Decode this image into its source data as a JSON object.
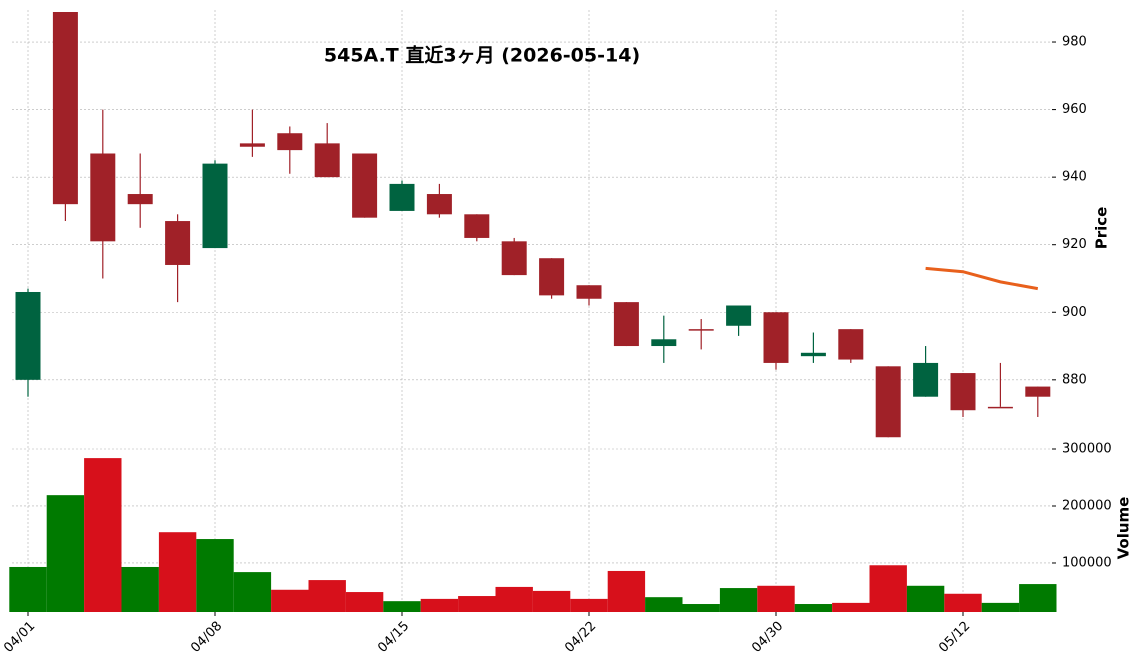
{
  "chart_data": {
    "type": "candlestick",
    "title": "545A.T  直近3ヶ月  (2026-05-14)",
    "categories": [
      "04/01",
      null,
      null,
      null,
      null,
      "04/08",
      null,
      null,
      null,
      null,
      "04/15",
      null,
      null,
      null,
      null,
      "04/22",
      null,
      null,
      null,
      null,
      "04/30",
      null,
      null,
      null,
      null,
      "05/12",
      null,
      null
    ],
    "open": [
      880,
      990,
      947,
      935,
      927,
      919,
      950,
      953,
      950,
      947,
      930,
      935,
      929,
      921,
      916,
      908,
      903,
      890,
      895,
      896,
      900,
      887,
      895,
      884,
      875,
      882,
      872,
      878
    ],
    "high": [
      907,
      992,
      960,
      947,
      929,
      945,
      960,
      955,
      956,
      947,
      939,
      938,
      929,
      922,
      916,
      908,
      903,
      899,
      898,
      902,
      900,
      894,
      895,
      884,
      890,
      882,
      885,
      878
    ],
    "low": [
      875,
      927,
      910,
      925,
      903,
      919,
      946,
      941,
      940,
      928,
      930,
      928,
      921,
      911,
      904,
      902,
      890,
      885,
      889,
      893,
      883,
      885,
      885,
      863,
      875,
      869,
      872,
      869
    ],
    "close": [
      906,
      932,
      921,
      932,
      914,
      944,
      949,
      948,
      940,
      928,
      938,
      929,
      922,
      911,
      905,
      904,
      890,
      892,
      895,
      902,
      885,
      888,
      886,
      863,
      885,
      871,
      872,
      875
    ],
    "up_color": "#006340",
    "down_color": "#a02128",
    "ma": {
      "color": "#e8601c",
      "values": [
        null,
        null,
        null,
        null,
        null,
        null,
        null,
        null,
        null,
        null,
        null,
        null,
        null,
        null,
        null,
        null,
        null,
        null,
        null,
        null,
        null,
        null,
        null,
        null,
        913,
        912,
        909,
        907
      ]
    },
    "ylim": [
      861,
      988
    ],
    "yticks": [
      880,
      900,
      920,
      940,
      960,
      980
    ],
    "ylabel": "Price",
    "grid": true,
    "volume": {
      "values": [
        93000,
        219000,
        284000,
        93000,
        154000,
        142000,
        84000,
        53000,
        70000,
        49000,
        33000,
        37000,
        42000,
        58000,
        51000,
        37000,
        86000,
        40000,
        28000,
        56000,
        60000,
        28000,
        30000,
        96000,
        60000,
        46000,
        30000,
        63000
      ],
      "colors": [
        "#007a00",
        "#007a00",
        "#d7101b",
        "#007a00",
        "#d7101b",
        "#007a00",
        "#007a00",
        "#d7101b",
        "#d7101b",
        "#d7101b",
        "#007a00",
        "#d7101b",
        "#d7101b",
        "#d7101b",
        "#d7101b",
        "#d7101b",
        "#d7101b",
        "#007a00",
        "#007a00",
        "#007a00",
        "#d7101b",
        "#007a00",
        "#d7101b",
        "#d7101b",
        "#007a00",
        "#d7101b",
        "#007a00",
        "#007a00"
      ],
      "ylim": [
        14000,
        307000
      ],
      "yticks": [
        100000,
        200000,
        300000
      ],
      "ylabel": "Volume"
    }
  }
}
